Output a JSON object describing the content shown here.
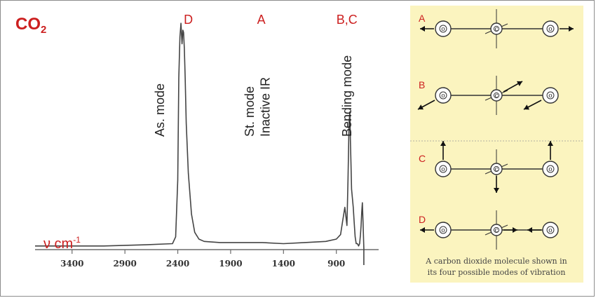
{
  "chart_data": {
    "type": "line",
    "title": "CO2",
    "xlabel": "ν cm-1",
    "ylabel": "",
    "x_reversed": true,
    "xlim": [
      3750,
      500
    ],
    "ticks": [
      "3400",
      "2900",
      "2400",
      "1900",
      "1400",
      "900"
    ],
    "tick_values": [
      3400,
      2900,
      2400,
      1900,
      1400,
      900
    ],
    "ylim": [
      0,
      1
    ],
    "grid": false,
    "series": [
      {
        "x": [
          3750,
          3500,
          3100,
          2700,
          2450,
          2420,
          2400,
          2390,
          2380,
          2370,
          2360,
          2352,
          2345,
          2338,
          2330,
          2320,
          2300,
          2270,
          2240,
          2200,
          2150,
          2000,
          1800,
          1600,
          1400,
          1200,
          1000,
          900,
          860,
          840,
          820,
          800,
          790,
          780,
          772,
          767,
          762,
          756,
          748,
          740,
          732,
          722,
          712,
          700,
          690,
          680,
          672,
          666,
          660,
          654,
          648,
          640
        ],
        "y": [
          0.01,
          0.01,
          0.01,
          0.015,
          0.02,
          0.05,
          0.3,
          0.75,
          0.93,
          0.99,
          0.9,
          0.96,
          0.95,
          0.88,
          0.75,
          0.55,
          0.33,
          0.15,
          0.07,
          0.04,
          0.03,
          0.025,
          0.025,
          0.025,
          0.02,
          0.025,
          0.03,
          0.04,
          0.06,
          0.12,
          0.18,
          0.1,
          0.3,
          0.55,
          0.6,
          0.48,
          0.38,
          0.26,
          0.22,
          0.18,
          0.12,
          0.05,
          0.02,
          0.02,
          0.01,
          0.02,
          0.06,
          0.1,
          0.16,
          0.2,
          0.12,
          0.0
        ]
      }
    ],
    "annotations": [
      {
        "text": "D",
        "x": 2300,
        "pos": "top",
        "color": "red"
      },
      {
        "text": "A",
        "x": 1610,
        "pos": "top",
        "color": "red"
      },
      {
        "text": "B,C",
        "x": 800,
        "pos": "top",
        "color": "red"
      },
      {
        "text": "As. mode",
        "x": 2530,
        "rotate": -90
      },
      {
        "text": "St. mode",
        "x": 1680,
        "rotate": -90
      },
      {
        "text": "Inactive IR",
        "x": 1530,
        "rotate": -90
      },
      {
        "text": "Bending mode",
        "x": 760,
        "rotate": -90
      }
    ]
  },
  "diagram": {
    "modes": [
      "A",
      "B",
      "C",
      "D"
    ],
    "atom_o": "o",
    "atom_c": "c",
    "caption_line1": "A carbon dioxide molecule shown in",
    "caption_line2": "its four possible modes of vibration"
  }
}
